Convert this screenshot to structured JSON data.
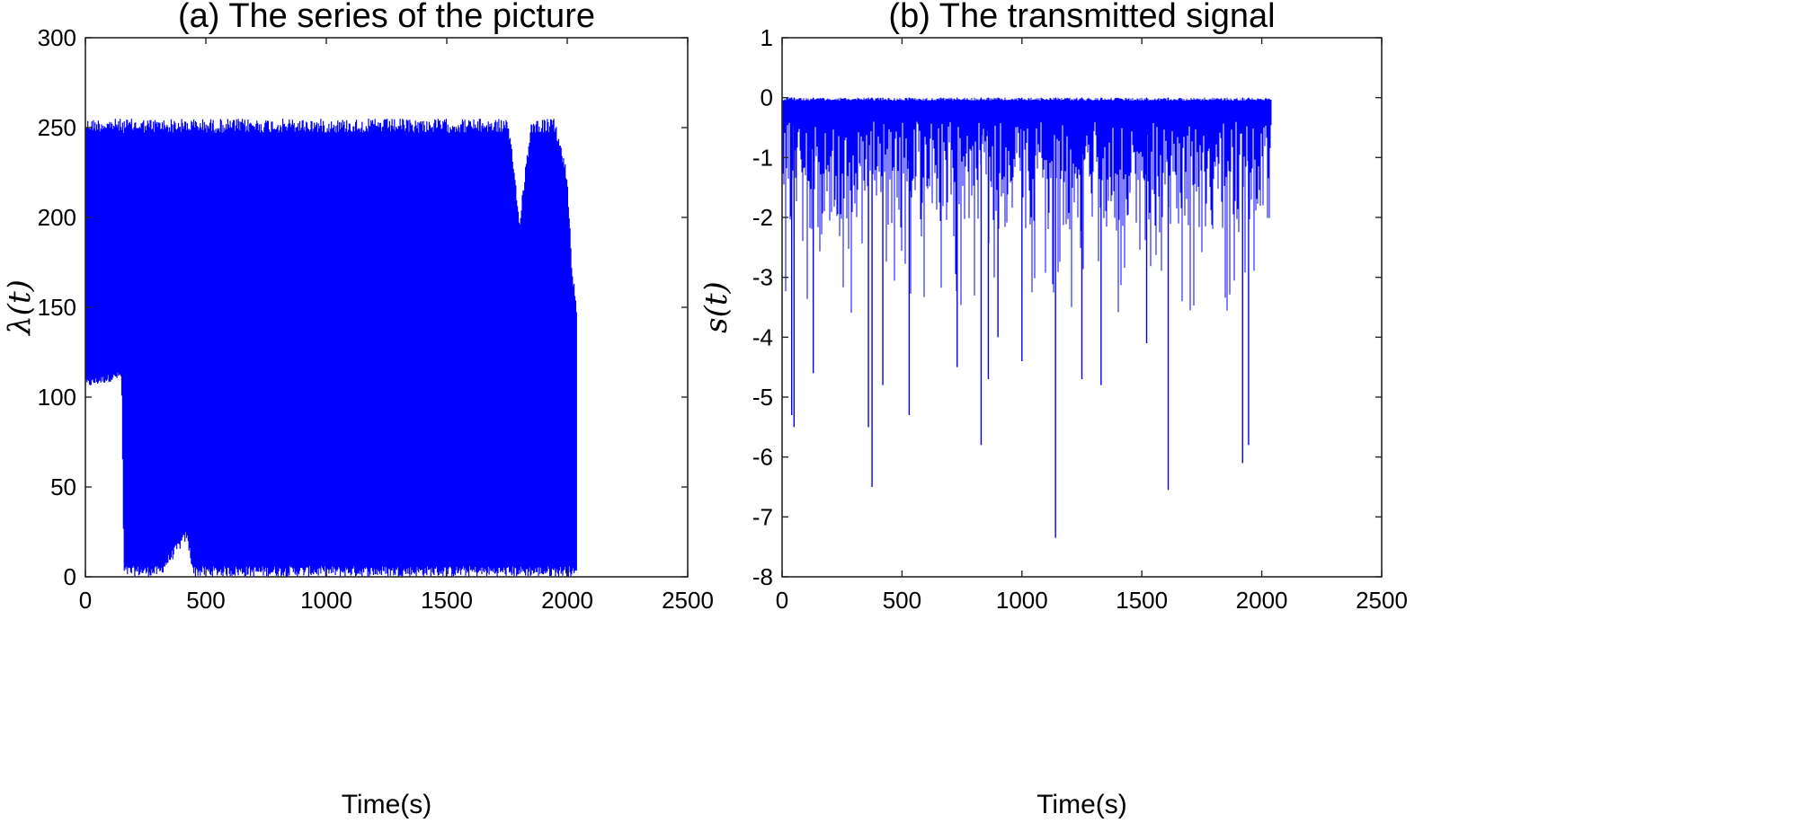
{
  "chart_data": [
    {
      "type": "line",
      "title": "(a) The series of the picture",
      "xlabel": "Time(s)",
      "ylabel": "λ(t)",
      "xlim": [
        0,
        2500
      ],
      "ylim": [
        0,
        300
      ],
      "xticks": [
        0,
        500,
        1000,
        1500,
        2000,
        2500
      ],
      "yticks": [
        0,
        50,
        100,
        150,
        200,
        250,
        300
      ],
      "grid": false,
      "series": [
        {
          "color": "#0000ff",
          "description": "dense oscillating 8-bit pixel series",
          "x_range": [
            0,
            2040
          ],
          "envelope": {
            "x": [
              0,
              150,
              160,
              300,
              310,
              420,
              450,
              1430,
              1480,
              1660,
              1700,
              1750,
              1780,
              1800,
              1850,
              1900,
              1950,
              2000,
              2020,
              2040
            ],
            "upper": [
              255,
              255,
              255,
              255,
              255,
              255,
              255,
              255,
              255,
              255,
              255,
              255,
              230,
              200,
              255,
              255,
              255,
              225,
              175,
              150
            ],
            "lower": [
              105,
              110,
              0,
              0,
              0,
              20,
              0,
              0,
              0,
              0,
              0,
              0,
              0,
              0,
              0,
              0,
              0,
              0,
              0,
              0
            ]
          }
        }
      ]
    },
    {
      "type": "line",
      "title": "(b) The transmitted signal",
      "xlabel": "Time(s)",
      "ylabel": "s(t)",
      "xlim": [
        0,
        2500
      ],
      "ylim": [
        -8,
        1
      ],
      "xticks": [
        0,
        500,
        1000,
        1500,
        2000,
        2500
      ],
      "yticks": [
        1,
        0,
        -1,
        -2,
        -3,
        -4,
        -5,
        -6,
        -7,
        -8
      ],
      "grid": false,
      "series": [
        {
          "color": "#0000ff",
          "description": "dense negative spiky signal near zero",
          "x_range": [
            0,
            2040
          ],
          "notable_spikes": {
            "x": [
              40,
              50,
              130,
              360,
              375,
              420,
              530,
              730,
              830,
              860,
              900,
              1000,
              1140,
              1250,
              1330,
              1520,
              1610,
              1920,
              1945
            ],
            "y": [
              -5.3,
              -5.5,
              -4.6,
              -5.5,
              -6.5,
              -4.8,
              -5.3,
              -4.5,
              -5.8,
              -4.7,
              -4.0,
              -4.4,
              -7.35,
              -4.7,
              -4.8,
              -4.1,
              -6.55,
              -6.1,
              -5.8
            ]
          }
        }
      ]
    }
  ]
}
